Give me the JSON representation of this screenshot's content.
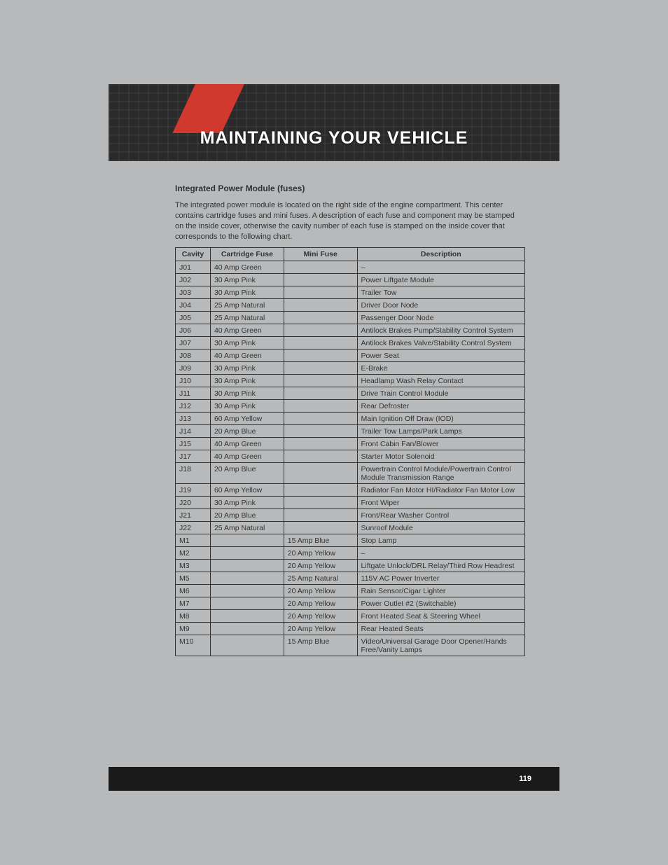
{
  "banner": {
    "title": "MAINTAINING YOUR VEHICLE"
  },
  "section": {
    "heading": "Integrated Power Module (fuses)",
    "intro": "The integrated power module is located on the right side of the engine compartment. This center contains cartridge fuses and mini fuses. A description of each fuse and component may be stamped on the inside cover, otherwise the cavity number of each fuse is stamped on the inside cover that corresponds to the following chart."
  },
  "table": {
    "headers": {
      "cavity": "Cavity",
      "cartridge": "Cartridge Fuse",
      "mini": "Mini Fuse",
      "desc": "Description"
    },
    "rows": [
      {
        "cavity": "J01",
        "cartridge": "40 Amp Green",
        "mini": "",
        "desc": "–"
      },
      {
        "cavity": "J02",
        "cartridge": "30 Amp Pink",
        "mini": "",
        "desc": "Power Liftgate Module"
      },
      {
        "cavity": "J03",
        "cartridge": "30 Amp Pink",
        "mini": "",
        "desc": "Trailer Tow"
      },
      {
        "cavity": "J04",
        "cartridge": "25 Amp Natural",
        "mini": "",
        "desc": "Driver Door Node"
      },
      {
        "cavity": "J05",
        "cartridge": "25 Amp Natural",
        "mini": "",
        "desc": "Passenger Door Node"
      },
      {
        "cavity": "J06",
        "cartridge": "40 Amp Green",
        "mini": "",
        "desc": "Antilock Brakes Pump/Stability Control System"
      },
      {
        "cavity": "J07",
        "cartridge": "30 Amp Pink",
        "mini": "",
        "desc": "Antilock Brakes Valve/Stability Control System"
      },
      {
        "cavity": "J08",
        "cartridge": "40 Amp Green",
        "mini": "",
        "desc": "Power Seat"
      },
      {
        "cavity": "J09",
        "cartridge": "30 Amp Pink",
        "mini": "",
        "desc": "E-Brake"
      },
      {
        "cavity": "J10",
        "cartridge": "30 Amp Pink",
        "mini": "",
        "desc": "Headlamp Wash Relay Contact"
      },
      {
        "cavity": "J11",
        "cartridge": "30 Amp Pink",
        "mini": "",
        "desc": "Drive Train Control Module"
      },
      {
        "cavity": "J12",
        "cartridge": "30 Amp Pink",
        "mini": "",
        "desc": "Rear Defroster"
      },
      {
        "cavity": "J13",
        "cartridge": "60 Amp Yellow",
        "mini": "",
        "desc": "Main Ignition Off Draw (IOD)"
      },
      {
        "cavity": "J14",
        "cartridge": "20 Amp Blue",
        "mini": "",
        "desc": "Trailer Tow Lamps/Park Lamps"
      },
      {
        "cavity": "J15",
        "cartridge": "40 Amp Green",
        "mini": "",
        "desc": "Front Cabin Fan/Blower"
      },
      {
        "cavity": "J17",
        "cartridge": "40 Amp Green",
        "mini": "",
        "desc": "Starter Motor Solenoid"
      },
      {
        "cavity": "J18",
        "cartridge": "20 Amp Blue",
        "mini": "",
        "desc": "Powertrain Control Module/Powertrain Control Module Transmission Range"
      },
      {
        "cavity": "J19",
        "cartridge": "60 Amp Yellow",
        "mini": "",
        "desc": "Radiator Fan Motor HI/Radiator Fan Motor Low"
      },
      {
        "cavity": "J20",
        "cartridge": "30 Amp Pink",
        "mini": "",
        "desc": "Front Wiper"
      },
      {
        "cavity": "J21",
        "cartridge": "20 Amp Blue",
        "mini": "",
        "desc": "Front/Rear Washer Control"
      },
      {
        "cavity": "J22",
        "cartridge": "25 Amp Natural",
        "mini": "",
        "desc": "Sunroof Module"
      },
      {
        "cavity": "M1",
        "cartridge": "",
        "mini": "15 Amp Blue",
        "desc": "Stop Lamp"
      },
      {
        "cavity": "M2",
        "cartridge": "",
        "mini": "20 Amp Yellow",
        "desc": "–"
      },
      {
        "cavity": "M3",
        "cartridge": "",
        "mini": "20 Amp Yellow",
        "desc": "Liftgate Unlock/DRL Relay/Third Row Headrest"
      },
      {
        "cavity": "M5",
        "cartridge": "",
        "mini": "25 Amp Natural",
        "desc": "115V AC Power Inverter"
      },
      {
        "cavity": "M6",
        "cartridge": "",
        "mini": "20 Amp Yellow",
        "desc": "Rain Sensor/Cigar Lighter"
      },
      {
        "cavity": "M7",
        "cartridge": "",
        "mini": "20 Amp Yellow",
        "desc": "Power Outlet #2 (Switchable)"
      },
      {
        "cavity": "M8",
        "cartridge": "",
        "mini": "20 Amp Yellow",
        "desc": "Front Heated Seat & Steering Wheel"
      },
      {
        "cavity": "M9",
        "cartridge": "",
        "mini": "20 Amp Yellow",
        "desc": "Rear Heated Seats"
      },
      {
        "cavity": "M10",
        "cartridge": "",
        "mini": "15 Amp Blue",
        "desc": "Video/Universal Garage Door Opener/Hands Free/Vanity Lamps"
      }
    ]
  },
  "footer": {
    "page": "119"
  }
}
